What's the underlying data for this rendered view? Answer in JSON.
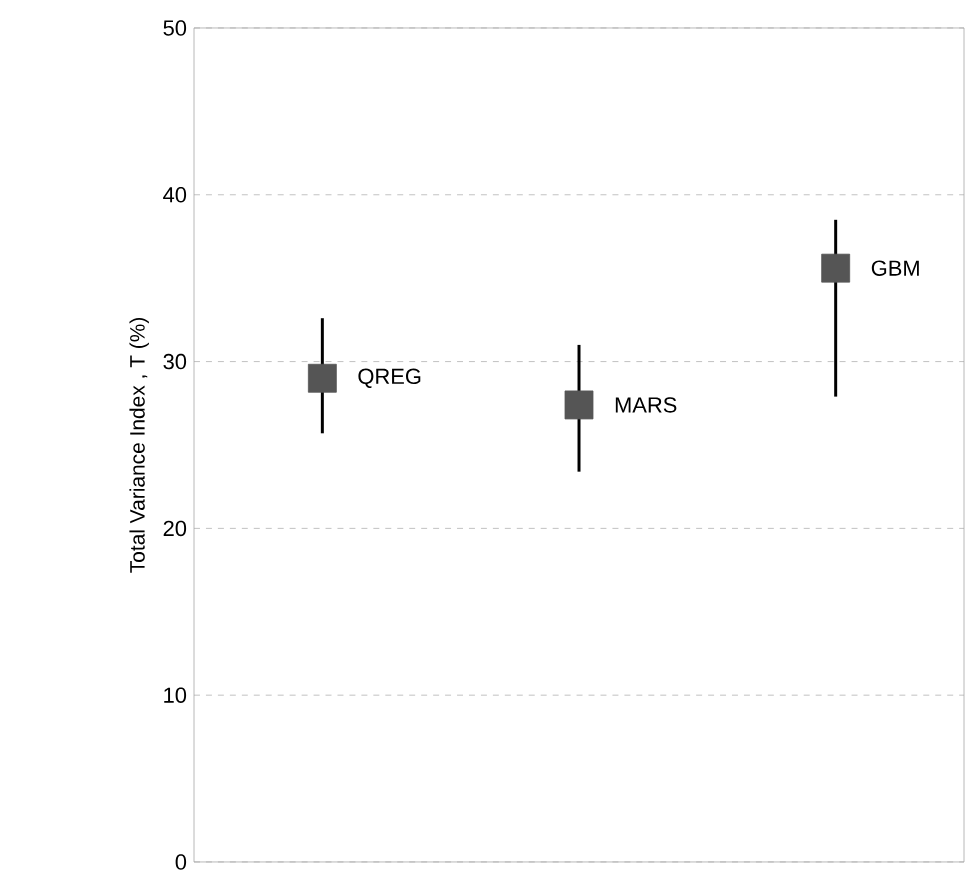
{
  "chart_data": {
    "type": "scatter",
    "ylabel": "Total Variance Index , T (%)",
    "categories": [
      null,
      null,
      null
    ],
    "values": [
      29.0,
      27.4,
      35.6
    ],
    "errors": [
      [
        25.7,
        32.6
      ],
      [
        23.4,
        31.0
      ],
      [
        27.9,
        38.5
      ]
    ],
    "value_labels": [
      "QREG",
      "MARS",
      "GBM"
    ],
    "color": "#555555",
    "marker": "square",
    "ylim": [
      0,
      50
    ],
    "yticks": [
      0,
      10,
      20,
      30,
      40,
      50
    ],
    "grid": "y"
  }
}
